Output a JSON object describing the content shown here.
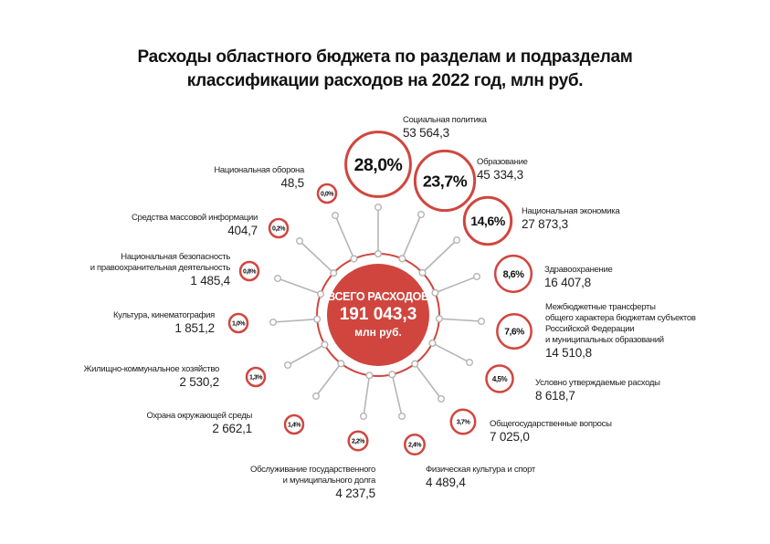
{
  "title": "Расходы областного бюджета по разделам и подразделам классификации расходов на 2022 год, млн руб.",
  "title_lines": [
    "Расходы областного бюджета по разделам и подразделам",
    "классификации расходов на 2022 год, млн руб."
  ],
  "colors": {
    "accent": "#d0463f",
    "spoke": "#b5b5b5",
    "text": "#222222"
  },
  "center": {
    "label": "ВСЕГО РАСХОДОВ",
    "value": "191 043,3",
    "unit": "млн руб."
  },
  "chart_data": {
    "type": "pie",
    "title": "Расходы областного бюджета по разделам и подразделам классификации расходов на 2022 год, млн руб.",
    "total": 191043.3,
    "categories": [
      "Социальная политика",
      "Образование",
      "Национальная экономика",
      "Здравоохранение",
      "Межбюджетные трансферты\nобщего характера бюджетам субъектов\nРоссийской Федерации\nи муниципальных образований",
      "Условно утверждаемые расходы",
      "Общегосударственные вопросы",
      "Физическая культура и спорт",
      "Обслуживание государственного\nи муниципального долга",
      "Охрана окружающей среды",
      "Жилищно-коммунальное хозяйство",
      "Культура, кинематография",
      "Национальная безопасность\nи правоохранительная деятельность",
      "Средства массовой информации",
      "Национальная оборона"
    ],
    "values": [
      53564.3,
      45334.3,
      27873.3,
      16407.8,
      14510.8,
      8618.7,
      7025.0,
      4489.4,
      4237.5,
      2662.1,
      2530.2,
      1851.2,
      1485.4,
      404.7,
      48.5
    ],
    "value_labels": [
      "53 564,3",
      "45 334,3",
      "27 873,3",
      "16 407,8",
      "14 510,8",
      "8 618,7",
      "7 025,0",
      "4 489,4",
      "4 237,5",
      "2 662,1",
      "2 530,2",
      "1 851,2",
      "1 485,4",
      "404,7",
      "48,5"
    ],
    "percent_labels": [
      "28,0%",
      "23,7%",
      "14,6%",
      "8,6%",
      "7,6%",
      "4,5%",
      "3,7%",
      "2,4%",
      "2,2%",
      "1,4%",
      "1,3%",
      "1,0%",
      "0,8%",
      "0,2%",
      "0,0%"
    ],
    "percents": [
      28.0,
      23.7,
      14.6,
      8.6,
      7.6,
      4.5,
      3.7,
      2.4,
      2.2,
      1.4,
      1.3,
      1.0,
      0.8,
      0.2,
      0.0
    ]
  }
}
